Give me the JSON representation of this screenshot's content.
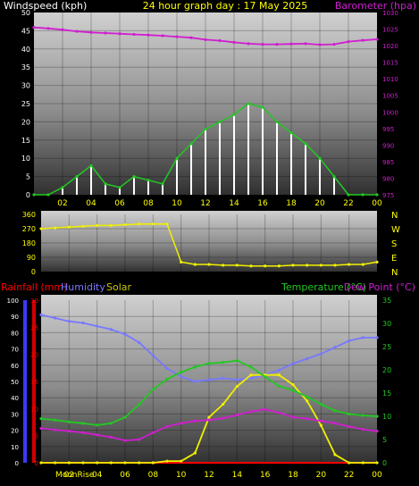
{
  "colors": {
    "wind_gust": "#ffffff",
    "wind_avg": "#22c822",
    "barometer": "#d01ed0",
    "direction": "#f0f000",
    "rain": "#ff0000",
    "humidity": "#7878ff",
    "solar": "#f0f000",
    "temperature": "#22c822",
    "dewpoint": "#d01ed0",
    "title": "#ffff00",
    "axis_white": "#ffffff",
    "axis_yellow": "#ffff00"
  },
  "chart_data": [
    {
      "type": "line",
      "title": "24 hour graph day : 17 May 2025",
      "ylabel_left": "Windspeed (kph)",
      "ylabel_right": "Barometer (hpa)",
      "x_ticks": [
        "02",
        "04",
        "06",
        "08",
        "10",
        "12",
        "14",
        "16",
        "18",
        "20",
        "22",
        "00"
      ],
      "x": [
        0.0,
        1.0,
        2.0,
        3.0,
        4.0,
        5.0,
        6.0,
        7.0,
        8.0,
        9.0,
        10.0,
        11.0,
        12.0,
        13.0,
        14.0,
        15.0,
        16.0,
        17.0,
        18.0,
        19.0,
        20.0,
        21.0,
        22.0,
        23.0,
        24.0
      ],
      "ylim_left": [
        0,
        50
      ],
      "ylim_right": [
        975,
        1030
      ],
      "left_ticks": [
        "0",
        "5",
        "10",
        "15",
        "20",
        "25",
        "30",
        "35",
        "40",
        "45",
        "50"
      ],
      "right_ticks": [
        "975",
        "980",
        "985",
        "990",
        "995",
        "1000",
        "1005",
        "1010",
        "1015",
        "1020",
        "1025",
        "1030"
      ],
      "series": [
        {
          "name": "Windspeed (kph)",
          "axis": "left",
          "values": [
            0,
            0,
            2,
            5,
            8,
            3,
            2,
            5,
            4,
            3,
            10,
            14,
            18,
            20,
            22,
            25,
            24,
            20,
            17,
            14,
            10,
            5,
            0,
            0,
            0
          ]
        },
        {
          "name": "Barometer (hpa)",
          "axis": "right",
          "values": [
            1025.5,
            1025.2,
            1024.8,
            1024.3,
            1024.0,
            1023.8,
            1023.6,
            1023.4,
            1023.2,
            1023.0,
            1022.7,
            1022.4,
            1021.8,
            1021.5,
            1021.0,
            1020.6,
            1020.4,
            1020.4,
            1020.5,
            1020.6,
            1020.3,
            1020.4,
            1021.2,
            1021.6,
            1021.9
          ]
        }
      ]
    },
    {
      "type": "line",
      "right_labels": [
        "N",
        "W",
        "S",
        "E",
        "N"
      ],
      "x": [
        0.0,
        1.0,
        2.0,
        3.0,
        4.0,
        5.0,
        6.0,
        7.0,
        8.0,
        9.0,
        10.0,
        11.0,
        12.0,
        13.0,
        14.0,
        15.0,
        16.0,
        17.0,
        18.0,
        19.0,
        20.0,
        21.0,
        22.0,
        23.0,
        24.0
      ],
      "ylim": [
        0,
        360
      ],
      "left_ticks": [
        "0",
        "90",
        "180",
        "270",
        "360"
      ],
      "series": [
        {
          "name": "Wind direction",
          "values": [
            270,
            275,
            280,
            285,
            290,
            290,
            295,
            300,
            300,
            300,
            60,
            45,
            45,
            40,
            40,
            35,
            35,
            35,
            40,
            40,
            40,
            40,
            45,
            45,
            60
          ]
        }
      ]
    },
    {
      "type": "line",
      "legend_left": [
        "Rainfall (mm)",
        "Humidity",
        "Solar"
      ],
      "legend_right": [
        "Temperature (°C)",
        "Dew Point (°C)"
      ],
      "x_ticks": [
        "02",
        "04",
        "06",
        "08",
        "10",
        "12",
        "14",
        "16",
        "18",
        "20",
        "22",
        "00"
      ],
      "x": [
        0.0,
        1.0,
        2.0,
        3.0,
        4.0,
        5.0,
        6.0,
        7.0,
        8.0,
        9.0,
        10.0,
        11.0,
        12.0,
        13.0,
        14.0,
        15.0,
        16.0,
        17.0,
        18.0,
        19.0,
        20.0,
        21.0,
        22.0,
        23.0,
        24.0
      ],
      "humidity_ticks": [
        "0",
        "10",
        "20",
        "30",
        "40",
        "50",
        "60",
        "70",
        "80",
        "90",
        "100"
      ],
      "rain_ticks": [
        "0",
        "5",
        "10",
        "15",
        "20",
        "25",
        "30"
      ],
      "temp_ticks": [
        "0",
        "5",
        "10",
        "15",
        "20",
        "25",
        "30",
        "35"
      ],
      "ylim_humidity": [
        0,
        100
      ],
      "ylim_rain": [
        0,
        30
      ],
      "ylim_temp": [
        0,
        35
      ],
      "annotations": [
        "MoonRise"
      ],
      "series": [
        {
          "name": "Rainfall (mm)",
          "axis": "rain",
          "values": [
            0,
            0,
            0,
            0,
            0,
            0,
            0,
            0,
            0,
            0,
            0,
            0,
            0,
            0,
            0,
            0,
            0,
            0,
            0,
            0,
            0,
            0,
            0,
            0,
            0
          ]
        },
        {
          "name": "Humidity",
          "axis": "humidity",
          "values": [
            91,
            89,
            87,
            86,
            84,
            82,
            79,
            74,
            66,
            58,
            53,
            50,
            51,
            52,
            51,
            52,
            54,
            57,
            61,
            64,
            67,
            71,
            75,
            77,
            77
          ]
        },
        {
          "name": "Solar",
          "axis": "humidity",
          "values": [
            0,
            0,
            0,
            0,
            0,
            0,
            0,
            0,
            0,
            1,
            1,
            6,
            28,
            36,
            47,
            54,
            54,
            54,
            48,
            38,
            23,
            5,
            0,
            0,
            0
          ]
        },
        {
          "name": "Temperature (°C)",
          "axis": "temp",
          "values": [
            9.5,
            9.2,
            8.8,
            8.5,
            8.1,
            8.5,
            9.8,
            12.5,
            15.8,
            18.0,
            19.5,
            20.6,
            21.4,
            21.6,
            22.0,
            20.6,
            18.5,
            16.5,
            15.6,
            14.2,
            12.6,
            11.2,
            10.5,
            10.2,
            10.0
          ]
        },
        {
          "name": "Dew Point (°C)",
          "axis": "temp",
          "values": [
            7.4,
            7.1,
            6.8,
            6.5,
            6.0,
            5.5,
            4.8,
            5.0,
            6.5,
            7.8,
            8.5,
            9.0,
            9.2,
            9.6,
            10.3,
            11.0,
            11.5,
            10.8,
            9.8,
            9.5,
            9.0,
            8.5,
            7.8,
            7.2,
            6.8
          ]
        }
      ]
    }
  ]
}
